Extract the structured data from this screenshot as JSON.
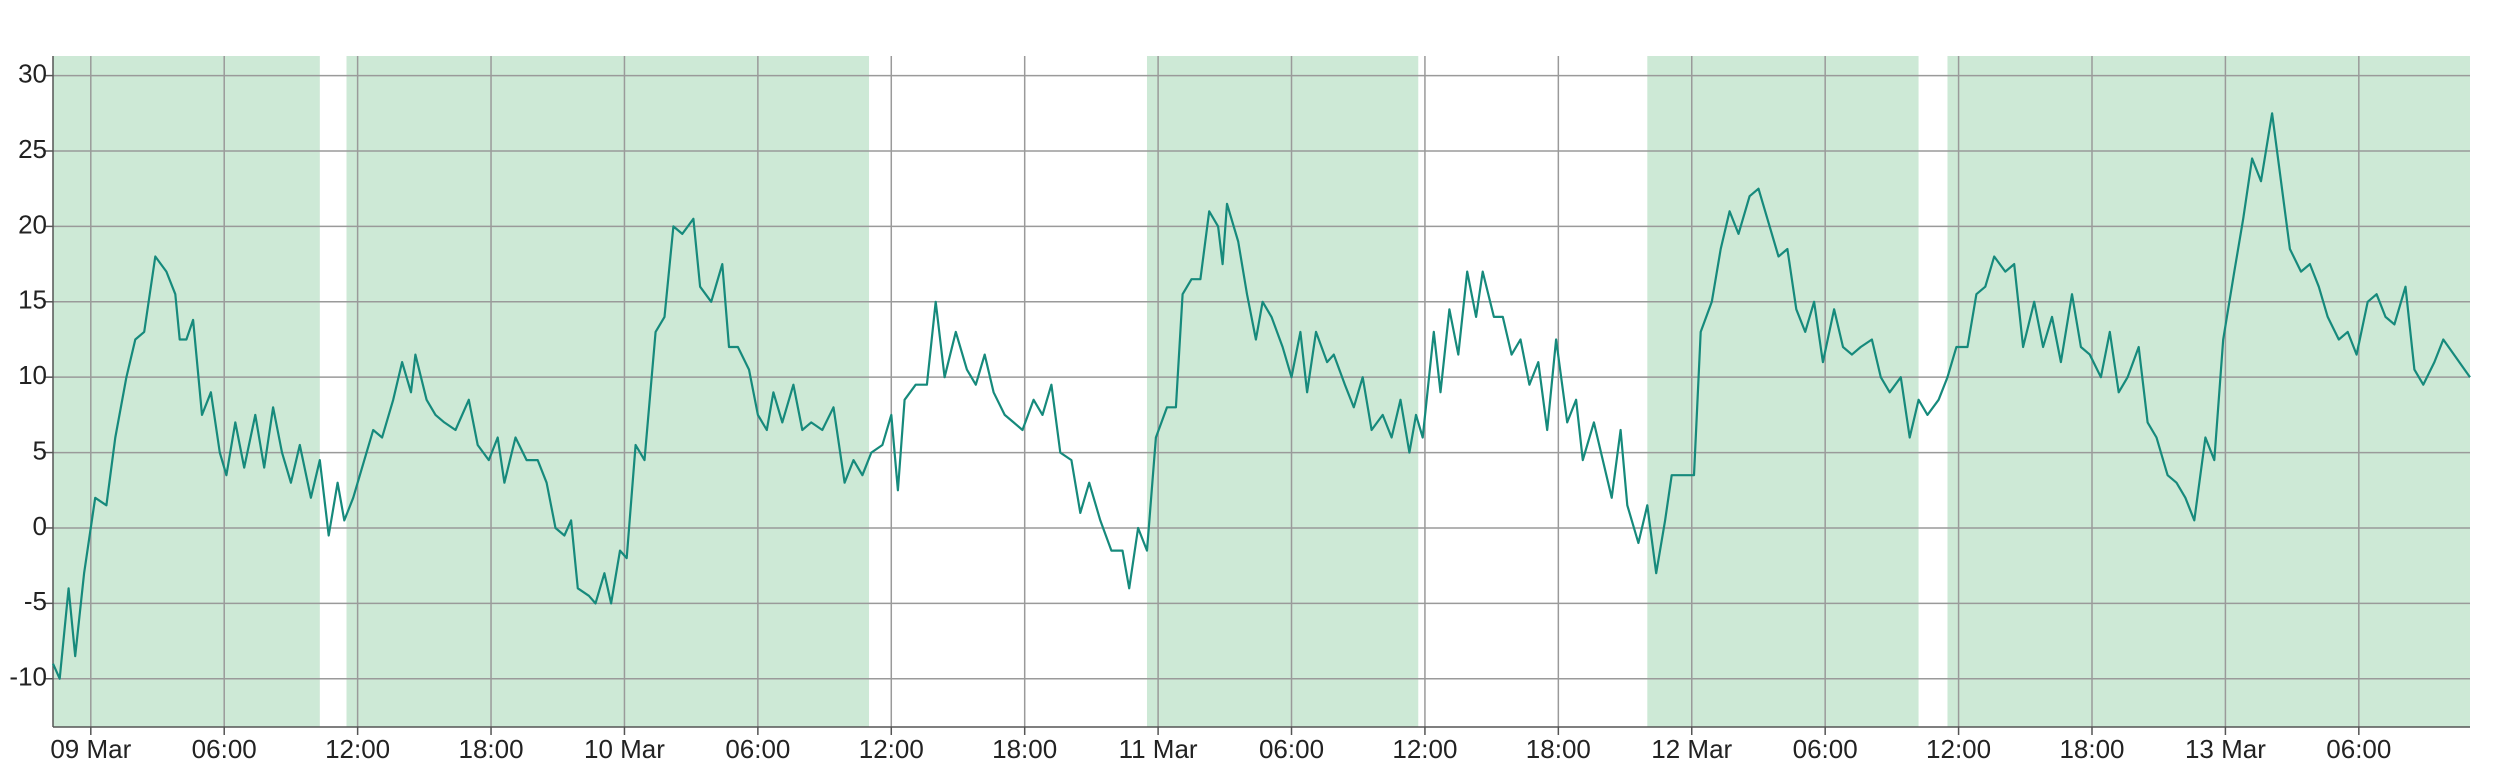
{
  "chart_data": {
    "type": "line",
    "x": [
      -1.7,
      -1.4,
      -1,
      -0.7,
      -0.3,
      0.2,
      0.7,
      1.1,
      1.6,
      2,
      2.4,
      2.9,
      3.4,
      3.8,
      4,
      4.3,
      4.6,
      5,
      5.4,
      5.8,
      6.1,
      6.5,
      6.9,
      7.4,
      7.8,
      8.2,
      8.6,
      9,
      9.4,
      9.9,
      10.3,
      10.7,
      11.1,
      11.4,
      11.8,
      12.2,
      12.7,
      13.1,
      13.6,
      14,
      14.4,
      14.6,
      15.1,
      15.5,
      15.9,
      16.4,
      17,
      17.4,
      17.9,
      18.3,
      18.6,
      19.1,
      19.6,
      20.1,
      20.5,
      20.9,
      21.3,
      21.6,
      21.9,
      22.4,
      22.7,
      23.1,
      23.4,
      23.8,
      24.1,
      24.5,
      24.9,
      25.4,
      25.8,
      26.2,
      26.6,
      27.1,
      27.4,
      27.9,
      28.4,
      28.7,
      29.1,
      29.6,
      30,
      30.4,
      30.7,
      31.1,
      31.6,
      32,
      32.4,
      32.9,
      33.4,
      33.9,
      34.3,
      34.7,
      35.1,
      35.6,
      36,
      36.3,
      36.6,
      37.1,
      37.6,
      38,
      38.4,
      38.9,
      39.4,
      39.8,
      40.2,
      40.6,
      41.1,
      41.5,
      41.9,
      42.4,
      42.8,
      43.2,
      43.6,
      44.1,
      44.5,
      44.9,
      45.4,
      45.9,
      46.4,
      46.7,
      47.1,
      47.5,
      47.9,
      48.4,
      48.8,
      49.1,
      49.5,
      49.9,
      50.3,
      50.7,
      50.9,
      51.1,
      51.6,
      52,
      52.4,
      52.7,
      53.1,
      53.6,
      54,
      54.4,
      54.7,
      55.1,
      55.6,
      55.9,
      56.4,
      56.8,
      57.2,
      57.6,
      58.1,
      58.5,
      58.9,
      59.3,
      59.6,
      59.9,
      60.4,
      60.7,
      61.1,
      61.5,
      61.9,
      62.3,
      62.6,
      63.1,
      63.5,
      63.9,
      64.3,
      64.7,
      65.1,
      65.5,
      65.9,
      66.4,
      66.8,
      67.1,
      67.6,
      68,
      68.4,
      68.8,
      69.1,
      69.6,
      70,
      70.4,
      70.8,
      71.1,
      71.6,
      72.1,
      72.4,
      72.9,
      73.3,
      73.7,
      74.1,
      74.6,
      75,
      75.4,
      75.9,
      76.3,
      76.7,
      77.1,
      77.5,
      77.9,
      78.4,
      78.8,
      79.2,
      79.6,
      80.1,
      80.5,
      80.9,
      81.4,
      81.8,
      82.2,
      82.6,
      83.1,
      83.5,
      83.9,
      84.4,
      84.8,
      85.2,
      85.6,
      86.1,
      86.5,
      86.9,
      87.4,
      87.8,
      88.2,
      88.6,
      89.1,
      89.5,
      89.9,
      90.4,
      90.8,
      91.2,
      91.6,
      92.1,
      92.5,
      92.9,
      93.4,
      93.8,
      94.2,
      94.6,
      95.1,
      95.5,
      95.9,
      96.4,
      96.8,
      97.2,
      97.6,
      98.1,
      98.5,
      98.9,
      99.4,
      99.8,
      100.2,
      100.6,
      101.1,
      101.5,
      101.9,
      102.4,
      102.8,
      103.2,
      103.6,
      104.1,
      104.5,
      104.9,
      105.4,
      105.8,
      107
    ],
    "values": [
      -9,
      -10,
      -4,
      -8.5,
      -3,
      2,
      1.5,
      6,
      10,
      12.5,
      13,
      18,
      17,
      15.5,
      12.5,
      12.5,
      13.8,
      7.5,
      9,
      5,
      3.5,
      7,
      4,
      7.5,
      4,
      8,
      5,
      3,
      5.5,
      2,
      4.5,
      -0.5,
      3,
      0.5,
      2,
      4,
      6.5,
      6,
      8.5,
      11,
      9,
      11.5,
      8.5,
      7.5,
      7,
      6.5,
      8.5,
      5.5,
      4.5,
      6,
      3,
      6,
      4.5,
      4.5,
      3,
      0,
      -0.5,
      0.5,
      -4,
      -4.5,
      -5,
      -3,
      -5,
      -1.5,
      -2,
      5.5,
      4.5,
      13,
      14,
      20,
      19.5,
      20.5,
      16,
      15,
      17.5,
      12,
      12,
      10.5,
      7.5,
      6.5,
      9,
      7,
      9.5,
      6.5,
      7,
      6.5,
      8,
      3,
      4.5,
      3.5,
      5,
      5.5,
      7.5,
      2.5,
      8.5,
      9.5,
      9.5,
      15,
      10,
      13,
      10.5,
      9.5,
      11.5,
      9,
      7.5,
      7,
      6.5,
      8.5,
      7.5,
      9.5,
      5,
      4.5,
      1,
      3,
      0.5,
      -1.5,
      -1.5,
      -4,
      0,
      -1.5,
      6,
      8,
      8,
      15.5,
      16.5,
      16.5,
      21,
      20,
      17.5,
      21.5,
      19,
      15.5,
      12.5,
      15,
      14,
      12,
      10,
      13,
      9,
      13,
      11,
      11.5,
      9.5,
      8,
      10,
      6.5,
      7.5,
      6,
      8.5,
      5,
      7.5,
      6,
      13,
      9,
      14.5,
      11.5,
      17,
      14,
      17,
      14,
      14,
      11.5,
      12.5,
      9.5,
      11,
      6.5,
      12.5,
      7,
      8.5,
      4.5,
      7,
      4.5,
      2,
      6.5,
      1.5,
      -1,
      1.5,
      -3,
      0.5,
      3.5,
      3.5,
      3.5,
      13,
      15,
      18.5,
      21,
      19.5,
      22,
      22.5,
      20.5,
      18,
      18.5,
      14.5,
      13,
      15,
      11,
      14.5,
      12,
      11.5,
      12,
      12.5,
      10,
      9,
      10,
      6,
      8.5,
      7.5,
      8.5,
      10,
      12,
      12,
      15.5,
      16,
      18,
      17,
      17.5,
      12,
      15,
      12,
      14,
      11,
      15.5,
      12,
      11.5,
      10,
      13,
      9,
      10,
      12,
      7,
      6,
      3.5,
      3,
      2,
      0.5,
      6,
      4.5,
      12.5,
      17,
      20.5,
      24.5,
      23,
      27.5,
      23,
      18.5,
      17,
      17.5,
      16,
      14,
      12.5,
      13,
      11.5,
      15,
      15.5,
      14,
      13.5,
      16,
      10.5,
      9.5,
      11,
      12.5,
      10
    ],
    "color": "#168a7c",
    "bands": [
      [
        -1.7,
        10.3
      ],
      [
        11.5,
        35
      ],
      [
        47.5,
        59.7
      ],
      [
        70,
        82.2
      ],
      [
        83.5,
        107
      ]
    ],
    "band_color": "#cde9d6",
    "xlim": [
      -1.7,
      107
    ],
    "xticks": [
      {
        "value": 0,
        "label": "09 Mar"
      },
      {
        "value": 6,
        "label": "06:00"
      },
      {
        "value": 12,
        "label": "12:00"
      },
      {
        "value": 18,
        "label": "18:00"
      },
      {
        "value": 24,
        "label": "10 Mar"
      },
      {
        "value": 30,
        "label": "06:00"
      },
      {
        "value": 36,
        "label": "12:00"
      },
      {
        "value": 42,
        "label": "18:00"
      },
      {
        "value": 48,
        "label": "11 Mar"
      },
      {
        "value": 54,
        "label": "06:00"
      },
      {
        "value": 60,
        "label": "12:00"
      },
      {
        "value": 66,
        "label": "18:00"
      },
      {
        "value": 72,
        "label": "12 Mar"
      },
      {
        "value": 78,
        "label": "06:00"
      },
      {
        "value": 84,
        "label": "12:00"
      },
      {
        "value": 90,
        "label": "18:00"
      },
      {
        "value": 96,
        "label": "13 Mar"
      },
      {
        "value": 102,
        "label": "06:00"
      }
    ],
    "ylim": [
      -13.2,
      31.3
    ],
    "yticks": [
      -10,
      -5,
      0,
      5,
      10,
      15,
      20,
      25,
      30
    ],
    "grid": true
  }
}
